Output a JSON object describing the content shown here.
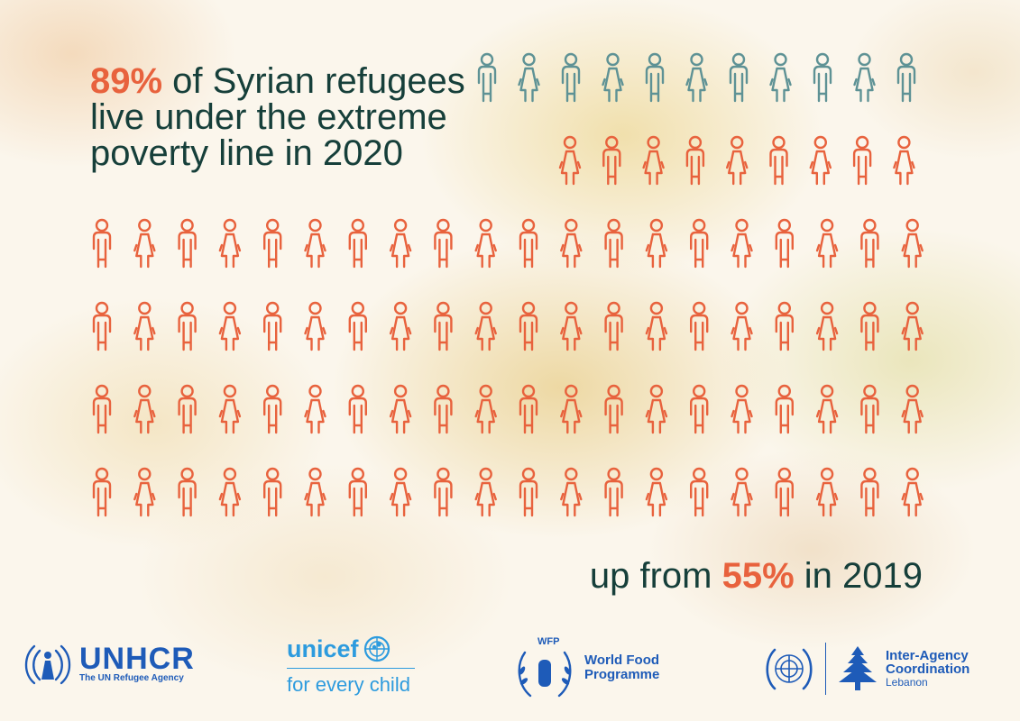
{
  "headline": {
    "highlight": "89%",
    "text_after": " of Syrian refugees live under the extreme poverty line in 2020"
  },
  "subline": {
    "before": "up from ",
    "highlight": "55%",
    "after": " in 2019"
  },
  "chart_data": {
    "type": "pictogram",
    "total": 100,
    "values": [
      89,
      11
    ],
    "colors": {
      "highlighted": "#e8623d",
      "other": "#5e9295",
      "text": "#163f3a"
    }
  },
  "logos": {
    "unhcr": {
      "name": "UNHCR",
      "tagline": "The UN Refugee Agency",
      "icon": "unhcr-emblem-icon"
    },
    "unicef": {
      "name": "unicef",
      "tagline": "for every child",
      "icon": "unicef-emblem-icon"
    },
    "wfp": {
      "badge": "WFP",
      "line1": "World Food",
      "line2": "Programme",
      "icon": "wfp-wreath-icon"
    },
    "iac": {
      "line1": "Inter-Agency",
      "line2": "Coordination",
      "line3": "Lebanon",
      "icons": [
        "un-emblem-icon",
        "cedar-tree-icon"
      ]
    },
    "color": "#1e5bb8",
    "unicef_color": "#2d9bde"
  }
}
